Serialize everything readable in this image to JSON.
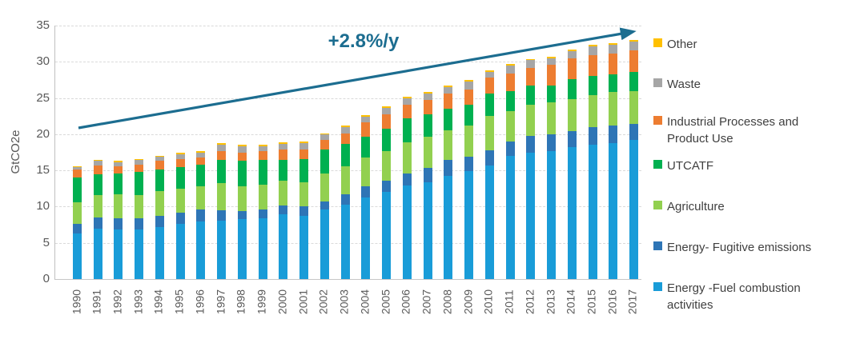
{
  "chart_data": {
    "type": "bar",
    "stacked": true,
    "title": "",
    "xlabel": "",
    "ylabel": "GtCO2e",
    "ylim": [
      0,
      35
    ],
    "yticks": [
      0,
      5,
      10,
      15,
      20,
      25,
      30,
      35
    ],
    "grid": true,
    "legend_position": "right",
    "categories": [
      "1990",
      "1991",
      "1992",
      "1993",
      "1994",
      "1995",
      "1996",
      "1997",
      "1998",
      "1999",
      "2000",
      "2001",
      "2002",
      "2003",
      "2004",
      "2005",
      "2006",
      "2007",
      "2008",
      "2009",
      "2010",
      "2011",
      "2012",
      "2013",
      "2014",
      "2015",
      "2016",
      "2017"
    ],
    "series": [
      {
        "name": "Energy -Fuel combustion activities",
        "color": "#199CD8",
        "values": [
          6.3,
          7.0,
          6.8,
          6.9,
          7.2,
          7.6,
          8.0,
          8.1,
          8.3,
          8.4,
          8.9,
          8.7,
          9.6,
          10.3,
          11.3,
          12.0,
          12.9,
          13.4,
          14.2,
          14.9,
          15.7,
          17.0,
          17.5,
          17.7,
          18.2,
          18.5,
          18.8,
          19.2
        ]
      },
      {
        "name": "Energy- Fugitive emissions",
        "color": "#2E75B6",
        "values": [
          1.3,
          1.5,
          1.6,
          1.5,
          1.5,
          1.6,
          1.6,
          1.4,
          1.1,
          1.2,
          1.25,
          1.4,
          1.1,
          1.4,
          1.5,
          1.6,
          1.7,
          1.9,
          2.2,
          2.0,
          2.1,
          2.0,
          2.3,
          2.3,
          2.2,
          2.5,
          2.4,
          2.2
        ]
      },
      {
        "name": "Agriculture",
        "color": "#92D050",
        "values": [
          3.0,
          3.1,
          3.3,
          3.2,
          3.4,
          3.3,
          3.2,
          3.7,
          3.4,
          3.4,
          3.45,
          3.3,
          3.9,
          3.9,
          4.0,
          4.1,
          4.3,
          4.4,
          4.1,
          4.3,
          4.7,
          4.2,
          4.3,
          4.4,
          4.4,
          4.4,
          4.6,
          4.6
        ]
      },
      {
        "name": "UTCATF",
        "color": "#00B050",
        "values": [
          3.4,
          2.9,
          2.9,
          3.2,
          3.0,
          3.0,
          3.0,
          3.3,
          3.5,
          3.4,
          2.9,
          3.2,
          3.3,
          3.1,
          2.8,
          3.1,
          3.3,
          3.0,
          3.0,
          2.9,
          3.1,
          2.7,
          2.6,
          2.3,
          2.8,
          2.6,
          2.5,
          2.6
        ]
      },
      {
        "name": "Industrial Processes and Product Use",
        "color": "#ED7D31",
        "values": [
          1.1,
          1.2,
          1.0,
          1.0,
          1.2,
          1.1,
          1.0,
          1.2,
          1.2,
          1.3,
          1.35,
          1.25,
          1.3,
          1.35,
          2.0,
          1.9,
          1.9,
          2.0,
          2.1,
          2.1,
          2.2,
          2.5,
          2.4,
          2.9,
          2.9,
          2.9,
          2.8,
          3.0
        ]
      },
      {
        "name": "Waste",
        "color": "#A6A6A6",
        "values": [
          0.4,
          0.6,
          0.55,
          0.6,
          0.55,
          0.6,
          0.7,
          0.9,
          0.8,
          0.65,
          0.85,
          0.9,
          0.75,
          0.9,
          0.85,
          0.9,
          0.85,
          0.9,
          0.85,
          1.1,
          0.8,
          1.1,
          1.1,
          0.9,
          1.0,
          1.2,
          1.3,
          1.2
        ]
      },
      {
        "name": "Other",
        "color": "#FFC000",
        "values": [
          0.1,
          0.15,
          0.15,
          0.15,
          0.15,
          0.2,
          0.2,
          0.2,
          0.2,
          0.2,
          0.15,
          0.2,
          0.15,
          0.2,
          0.2,
          0.2,
          0.25,
          0.25,
          0.25,
          0.25,
          0.2,
          0.2,
          0.2,
          0.2,
          0.2,
          0.2,
          0.2,
          0.2
        ]
      }
    ],
    "annotation": {
      "label": "+2.8%/y",
      "color": "#1C6D90",
      "arrow": true
    }
  }
}
